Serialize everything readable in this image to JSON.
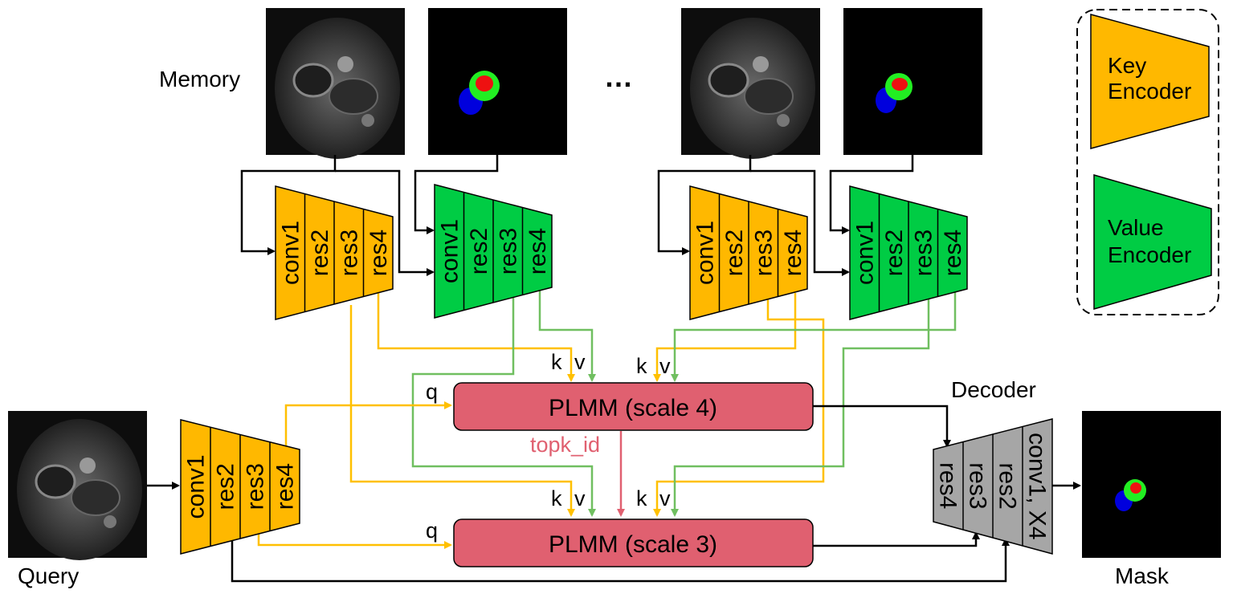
{
  "labels": {
    "memory": "Memory",
    "query": "Query",
    "mask": "Mask",
    "decoder": "Decoder",
    "ellipsis": "…",
    "topk": "topk_id",
    "q": "q",
    "k": "k",
    "v": "v"
  },
  "legend": {
    "key_encoder": [
      "Key",
      "Encoder"
    ],
    "value_encoder": [
      "Value",
      "Encoder"
    ]
  },
  "encoder_layers": [
    "conv1",
    "res2",
    "res3",
    "res4"
  ],
  "decoder_layers": [
    "res4",
    "res3",
    "res2",
    "conv1, X4"
  ],
  "plmm": {
    "scale4": "PLMM (scale 4)",
    "scale3": "PLMM (scale 3)"
  },
  "colors": {
    "key": "#ffb800",
    "value": "#00cc44",
    "plmm": "#e06070",
    "decoder": "#a6a6a6",
    "line_key": "#ffc000",
    "line_value": "#70bf60",
    "line_topk": "#e06070",
    "topk_text": "#e06070"
  }
}
